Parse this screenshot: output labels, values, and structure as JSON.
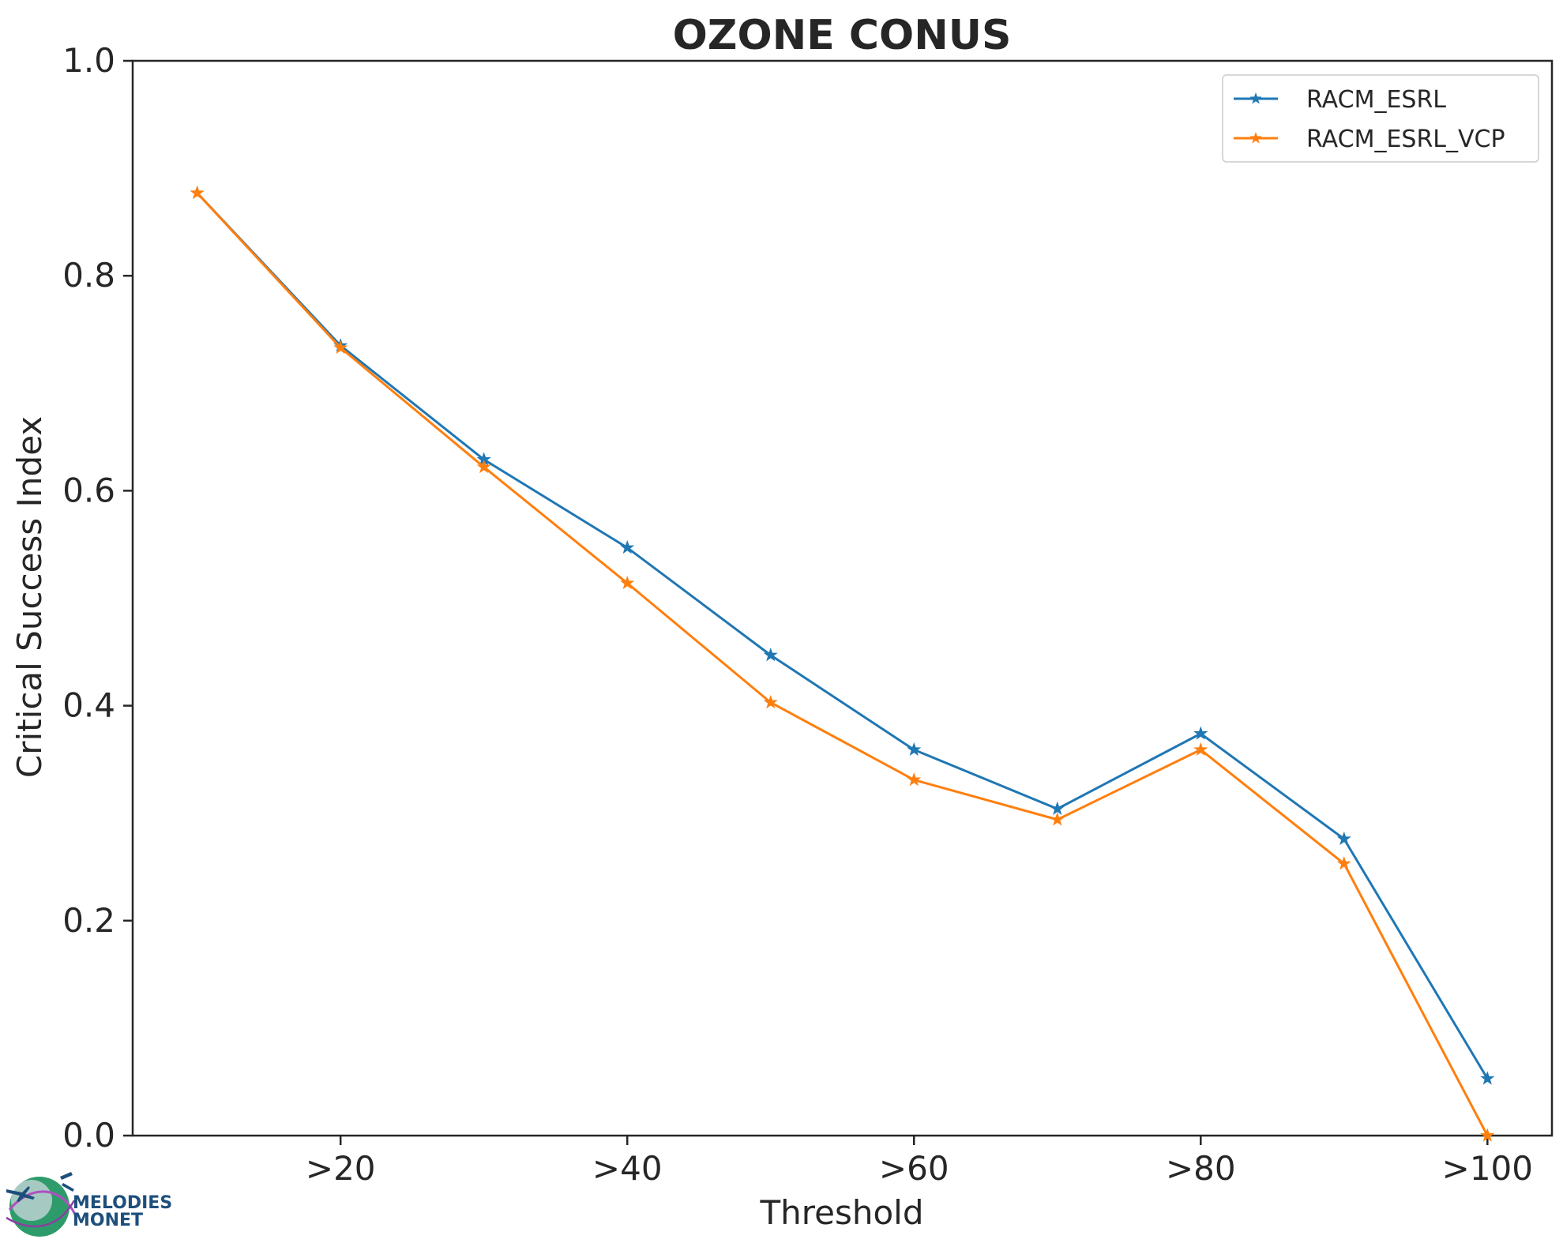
{
  "chart_data": {
    "type": "line",
    "title": "OZONE CONUS",
    "xlabel": "Threshold",
    "ylabel": "Critical Success Index",
    "x": [
      10,
      20,
      30,
      40,
      50,
      60,
      70,
      80,
      90,
      100
    ],
    "xlim": [
      5.5,
      104.5
    ],
    "ylim": [
      0,
      1
    ],
    "xticks": [
      20,
      40,
      60,
      80,
      100
    ],
    "xtick_labels": [
      ">20",
      ">40",
      ">60",
      ">80",
      ">100"
    ],
    "yticks": [
      0,
      0.2,
      0.4,
      0.6,
      0.8,
      1.0
    ],
    "ytick_labels": [
      "0.0",
      "0.2",
      "0.4",
      "0.6",
      "0.8",
      "1.0"
    ],
    "grid": false,
    "legend_position": "top-right",
    "series": [
      {
        "name": "RACM_ESRL",
        "color": "#1f77b4",
        "marker": "star",
        "values": [
          0.877,
          0.735,
          0.629,
          0.547,
          0.447,
          0.359,
          0.304,
          0.374,
          0.276,
          0.053
        ]
      },
      {
        "name": "RACM_ESRL_VCP",
        "color": "#ff7f0e",
        "marker": "star",
        "values": [
          0.877,
          0.733,
          0.622,
          0.514,
          0.403,
          0.331,
          0.294,
          0.359,
          0.253,
          0.0
        ]
      }
    ]
  },
  "logo": {
    "line1": "MELODIES",
    "line2": "MONET"
  }
}
